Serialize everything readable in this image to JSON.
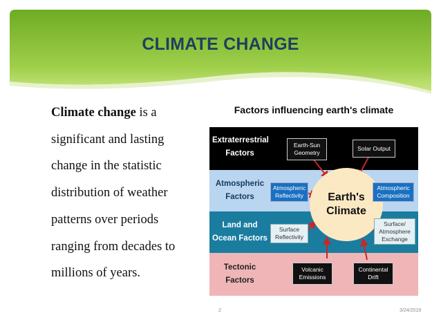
{
  "slide": {
    "title": "CLIMATE CHANGE",
    "body": {
      "term": "Climate change",
      "rest": " is a significant and lasting change in the statistic distribution of weather patterns over periods ranging from decades to millions of years."
    },
    "figure": {
      "title": "Factors influencing earth's climate",
      "center": {
        "line1": "Earth's",
        "line2": "Climate"
      },
      "rows": [
        {
          "label": "Extraterrestrial Factors",
          "color": "#000000"
        },
        {
          "label": "Atmospheric Factors",
          "color": "#b9d5ef"
        },
        {
          "label": "Land and Ocean Factors",
          "color": "#1a7da0"
        },
        {
          "label": "Tectonic Factors",
          "color": "#efb5b7"
        }
      ],
      "boxes": {
        "earth_sun": "Earth-Sun Geometry",
        "solar_output": "Solar Output",
        "atm_reflectivity": "Atmospheric Reflectivity",
        "atm_composition": "Atmospheric Composition",
        "surface_reflectivity": "Surface Reflectivity",
        "surface_exchange": "Surface/ Atmosphere Exchange",
        "volcanic": "Volcanic Emissions",
        "continental": "Continental Drift"
      }
    },
    "footer": {
      "page": "2",
      "date": "3/24/2019"
    },
    "colors": {
      "banner_green": "#7fb82e",
      "title_blue": "#1f3f5e"
    }
  }
}
